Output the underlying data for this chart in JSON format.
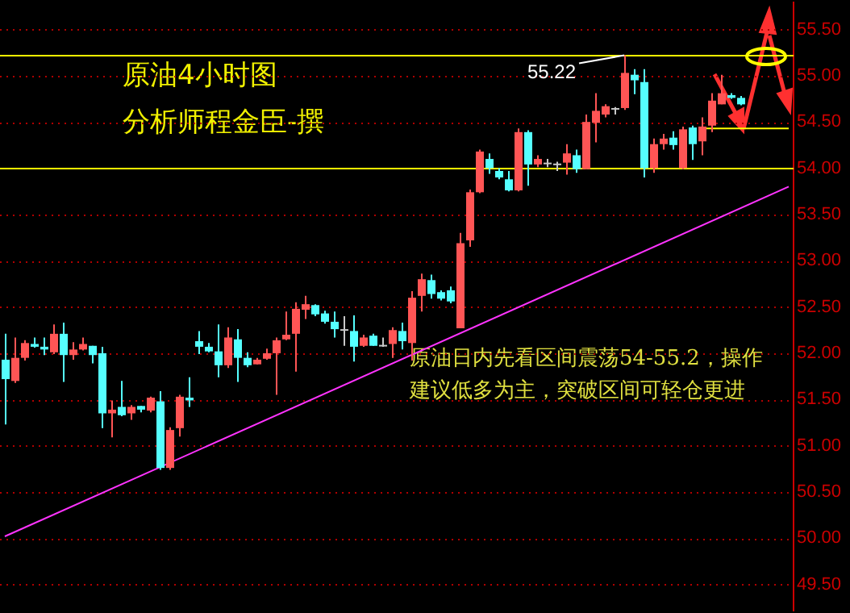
{
  "chart_data": {
    "type": "candlestick",
    "title": "原油4小时图",
    "subtitle": "分析师程金臣-撰",
    "annotations": [
      {
        "text": "55.22",
        "y": 55.22
      },
      "原油日内先看区间震荡54-55.2，操作建议低多为主，突破区间可轻仓更进"
    ],
    "categories": [
      null,
      null,
      null,
      null,
      null,
      null,
      null,
      null,
      null,
      null,
      null,
      null,
      null,
      null,
      null,
      null,
      null,
      null,
      null,
      null,
      null,
      null,
      null,
      null,
      null,
      null,
      null,
      null,
      null,
      null,
      null,
      null,
      null,
      null,
      null,
      null,
      null,
      null,
      null,
      null,
      null,
      null,
      null,
      null,
      null,
      null,
      null,
      null,
      null,
      null,
      null,
      null,
      null,
      null,
      null,
      null,
      null,
      null,
      null,
      null,
      null,
      null,
      null,
      null,
      null,
      null,
      null,
      null,
      null,
      null,
      null,
      null,
      null,
      null,
      null,
      null,
      null,
      null,
      null,
      null,
      null,
      null
    ],
    "ohlc": [
      [
        51.93,
        52.21,
        51.23,
        51.72
      ],
      [
        51.7,
        52.17,
        51.68,
        51.95
      ],
      [
        51.95,
        52.14,
        51.92,
        52.11
      ],
      [
        52.1,
        52.17,
        52.06,
        52.07
      ],
      [
        52.07,
        52.17,
        51.98,
        52.04
      ],
      [
        52.01,
        52.31,
        51.99,
        52.21
      ],
      [
        52.21,
        52.33,
        51.69,
        51.98
      ],
      [
        51.98,
        52.12,
        51.93,
        52.04
      ],
      [
        52.04,
        52.17,
        52.03,
        52.1
      ],
      [
        52.08,
        52.08,
        51.89,
        51.98
      ],
      [
        52.0,
        52.07,
        51.19,
        51.35
      ],
      [
        51.35,
        51.49,
        51.09,
        51.39
      ],
      [
        51.42,
        51.7,
        51.32,
        51.33
      ],
      [
        51.35,
        51.44,
        51.28,
        51.42
      ],
      [
        51.43,
        51.43,
        51.36,
        51.39
      ],
      [
        51.38,
        51.53,
        51.36,
        51.52
      ],
      [
        51.48,
        51.59,
        50.74,
        50.76
      ],
      [
        50.76,
        51.2,
        50.74,
        51.17
      ],
      [
        51.19,
        51.55,
        51.1,
        51.53
      ],
      [
        51.52,
        51.74,
        51.42,
        51.49
      ],
      [
        52.13,
        52.24,
        51.99,
        52.07
      ],
      [
        52.07,
        52.11,
        52.01,
        52.02
      ],
      [
        52.02,
        52.31,
        51.74,
        51.87
      ],
      [
        51.87,
        52.28,
        51.84,
        52.17
      ],
      [
        52.15,
        52.26,
        51.69,
        51.95
      ],
      [
        51.95,
        52.01,
        51.85,
        51.87
      ],
      [
        51.88,
        51.95,
        51.88,
        51.93
      ],
      [
        51.94,
        52.05,
        51.93,
        52.0
      ],
      [
        52.0,
        52.17,
        51.55,
        52.14
      ],
      [
        52.15,
        52.45,
        52.14,
        52.2
      ],
      [
        52.21,
        52.55,
        51.8,
        52.48
      ],
      [
        52.47,
        52.62,
        52.37,
        52.53
      ],
      [
        52.52,
        52.53,
        52.4,
        52.42
      ],
      [
        52.43,
        52.46,
        52.32,
        52.34
      ],
      [
        52.34,
        52.45,
        52.17,
        52.26
      ],
      [
        52.26,
        52.4,
        52.08,
        52.26
      ],
      [
        52.24,
        52.41,
        51.91,
        52.07
      ],
      [
        52.08,
        52.2,
        52.07,
        52.17
      ],
      [
        52.19,
        52.21,
        52.08,
        52.08
      ],
      [
        52.09,
        52.17,
        52.07,
        52.09
      ],
      [
        52.1,
        52.28,
        51.95,
        52.25
      ],
      [
        52.24,
        52.33,
        52.04,
        52.13
      ],
      [
        52.11,
        52.67,
        51.92,
        52.6
      ],
      [
        52.62,
        52.86,
        52.45,
        52.8
      ],
      [
        52.79,
        52.85,
        52.59,
        52.64
      ],
      [
        52.66,
        52.68,
        52.57,
        52.59
      ],
      [
        52.68,
        52.72,
        52.54,
        52.56
      ],
      [
        52.27,
        53.3,
        52.27,
        53.19
      ],
      [
        53.22,
        53.77,
        53.15,
        53.74
      ],
      [
        53.74,
        54.2,
        53.73,
        54.18
      ],
      [
        54.1,
        54.16,
        53.94,
        54.0
      ],
      [
        53.97,
        54.0,
        53.88,
        53.9
      ],
      [
        53.88,
        53.97,
        53.75,
        53.76
      ],
      [
        53.76,
        54.43,
        53.75,
        54.39
      ],
      [
        54.39,
        54.41,
        53.81,
        54.04
      ],
      [
        54.04,
        54.14,
        54.01,
        54.1
      ],
      [
        54.06,
        54.1,
        54.01,
        54.06
      ],
      [
        54.05,
        54.07,
        53.97,
        54.05
      ],
      [
        54.06,
        54.26,
        53.93,
        54.16
      ],
      [
        54.14,
        54.2,
        53.95,
        53.99
      ],
      [
        53.99,
        54.58,
        53.99,
        54.5
      ],
      [
        54.49,
        54.81,
        54.28,
        54.62
      ],
      [
        54.58,
        54.69,
        54.55,
        54.67
      ],
      [
        54.65,
        54.66,
        54.58,
        54.65
      ],
      [
        54.65,
        55.22,
        54.63,
        55.03
      ],
      [
        55.01,
        55.07,
        54.8,
        54.95
      ],
      [
        54.93,
        55.07,
        53.9,
        54.0
      ],
      [
        54.0,
        54.32,
        53.95,
        54.26
      ],
      [
        54.26,
        54.37,
        54.2,
        54.32
      ],
      [
        54.33,
        54.4,
        54.2,
        54.25
      ],
      [
        54.0,
        54.45,
        53.99,
        54.42
      ],
      [
        54.44,
        54.46,
        54.09,
        54.26
      ],
      [
        54.29,
        54.55,
        54.14,
        54.45
      ],
      [
        54.46,
        54.81,
        54.39,
        54.73
      ],
      [
        54.69,
        55.01,
        54.69,
        54.81
      ],
      [
        54.79,
        54.81,
        54.75,
        54.76
      ],
      [
        54.76,
        54.78,
        54.68,
        54.69
      ],
      null,
      null,
      null,
      null,
      null
    ],
    "colors": [
      "#55ffff",
      "#ff5555",
      "#ff5555",
      "#55ffff",
      "#55ffff",
      "#ff5555",
      "#55ffff",
      "#ff5555",
      "#ff5555",
      "#55ffff",
      "#55ffff",
      "#ff5555",
      "#55ffff",
      "#ff5555",
      "#55ffff",
      "#ff5555",
      "#55ffff",
      "#ff5555",
      "#ff5555",
      "#55ffff",
      "#55ffff",
      "#55ffff",
      "#55ffff",
      "#ff5555",
      "#55ffff",
      "#55ffff",
      "#ff5555",
      "#ff5555",
      "#ff5555",
      "#ff5555",
      "#ff5555",
      "#ff5555",
      "#55ffff",
      "#55ffff",
      "#55ffff",
      "#c8c8c8",
      "#55ffff",
      "#ff5555",
      "#55ffff",
      "#c8c8c8",
      "#ff5555",
      "#55ffff",
      "#ff5555",
      "#ff5555",
      "#55ffff",
      "#55ffff",
      "#55ffff",
      "#ff5555",
      "#ff5555",
      "#ff5555",
      "#55ffff",
      "#55ffff",
      "#55ffff",
      "#ff5555",
      "#55ffff",
      "#ff5555",
      "#c8c8c8",
      "#c8c8c8",
      "#ff5555",
      "#55ffff",
      "#ff5555",
      "#ff5555",
      "#ff5555",
      "#c8c8c8",
      "#ff5555",
      "#55ffff",
      "#55ffff",
      "#ff5555",
      "#ff5555",
      "#55ffff",
      "#ff5555",
      "#55ffff",
      "#ff5555",
      "#ff5555",
      "#ff5555",
      "#55ffff",
      "#55ffff",
      null,
      null,
      null,
      null,
      null
    ],
    "series": [
      {
        "type": "line",
        "color": "#ff33ff",
        "values": [
          50.02,
          null,
          null,
          null,
          null,
          null,
          null,
          null,
          null,
          null,
          null,
          null,
          null,
          null,
          null,
          null,
          null,
          null,
          null,
          null,
          null,
          null,
          null,
          null,
          null,
          null,
          null,
          null,
          null,
          null,
          null,
          null,
          null,
          null,
          null,
          null,
          null,
          null,
          null,
          null,
          null,
          null,
          null,
          null,
          null,
          null,
          null,
          null,
          null,
          null,
          null,
          null,
          null,
          null,
          null,
          null,
          null,
          null,
          null,
          null,
          null,
          null,
          null,
          null,
          null,
          null,
          null,
          null,
          null,
          null,
          null,
          null,
          null,
          null,
          null,
          null,
          null,
          null,
          null,
          null,
          null,
          53.8
        ]
      },
      {
        "type": "line",
        "color": "#ffff00",
        "values": [
          null,
          null,
          null,
          null,
          null,
          null,
          null,
          null,
          null,
          null,
          null,
          null,
          null,
          null,
          null,
          null,
          null,
          null,
          null,
          null,
          null,
          null,
          null,
          null,
          null,
          null,
          null,
          null,
          null,
          null,
          null,
          null,
          null,
          null,
          null,
          null,
          null,
          null,
          null,
          null,
          null,
          null,
          null,
          null,
          null,
          null,
          null,
          null,
          null,
          null,
          null,
          null,
          null,
          null,
          null,
          null,
          null,
          null,
          null,
          null,
          null,
          null,
          null,
          null,
          null,
          null,
          null,
          null,
          null,
          null,
          null,
          null,
          54.43,
          54.43,
          54.43,
          54.43,
          54.43,
          54.43,
          54.43,
          54.43,
          54.43,
          54.43
        ]
      }
    ],
    "ref_lines": [
      {
        "axis": "y",
        "value": 55.22,
        "color": "#ffff00"
      },
      {
        "axis": "y",
        "value": 54.0,
        "color": "#ffff00"
      }
    ],
    "ylim": [
      49.22,
      55.79
    ],
    "yticks": [
      {
        "value": 49.5,
        "label": "49.50"
      },
      {
        "value": 50,
        "label": "50.00"
      },
      {
        "value": 50.5,
        "label": "50.50"
      },
      {
        "value": 51,
        "label": "51.00"
      },
      {
        "value": 51.5,
        "label": "51.50"
      },
      {
        "value": 52,
        "label": "52.00"
      },
      {
        "value": 52.5,
        "label": "52.50"
      },
      {
        "value": 53,
        "label": "53.00"
      },
      {
        "value": 53.5,
        "label": "53.50"
      },
      {
        "value": 54,
        "label": "54.00"
      },
      {
        "value": 54.5,
        "label": "54.50"
      },
      {
        "value": 55,
        "label": "55.00"
      },
      {
        "value": 55.5,
        "label": "55.50"
      }
    ],
    "grid": "y",
    "tick_labels": "y",
    "legend": false
  }
}
